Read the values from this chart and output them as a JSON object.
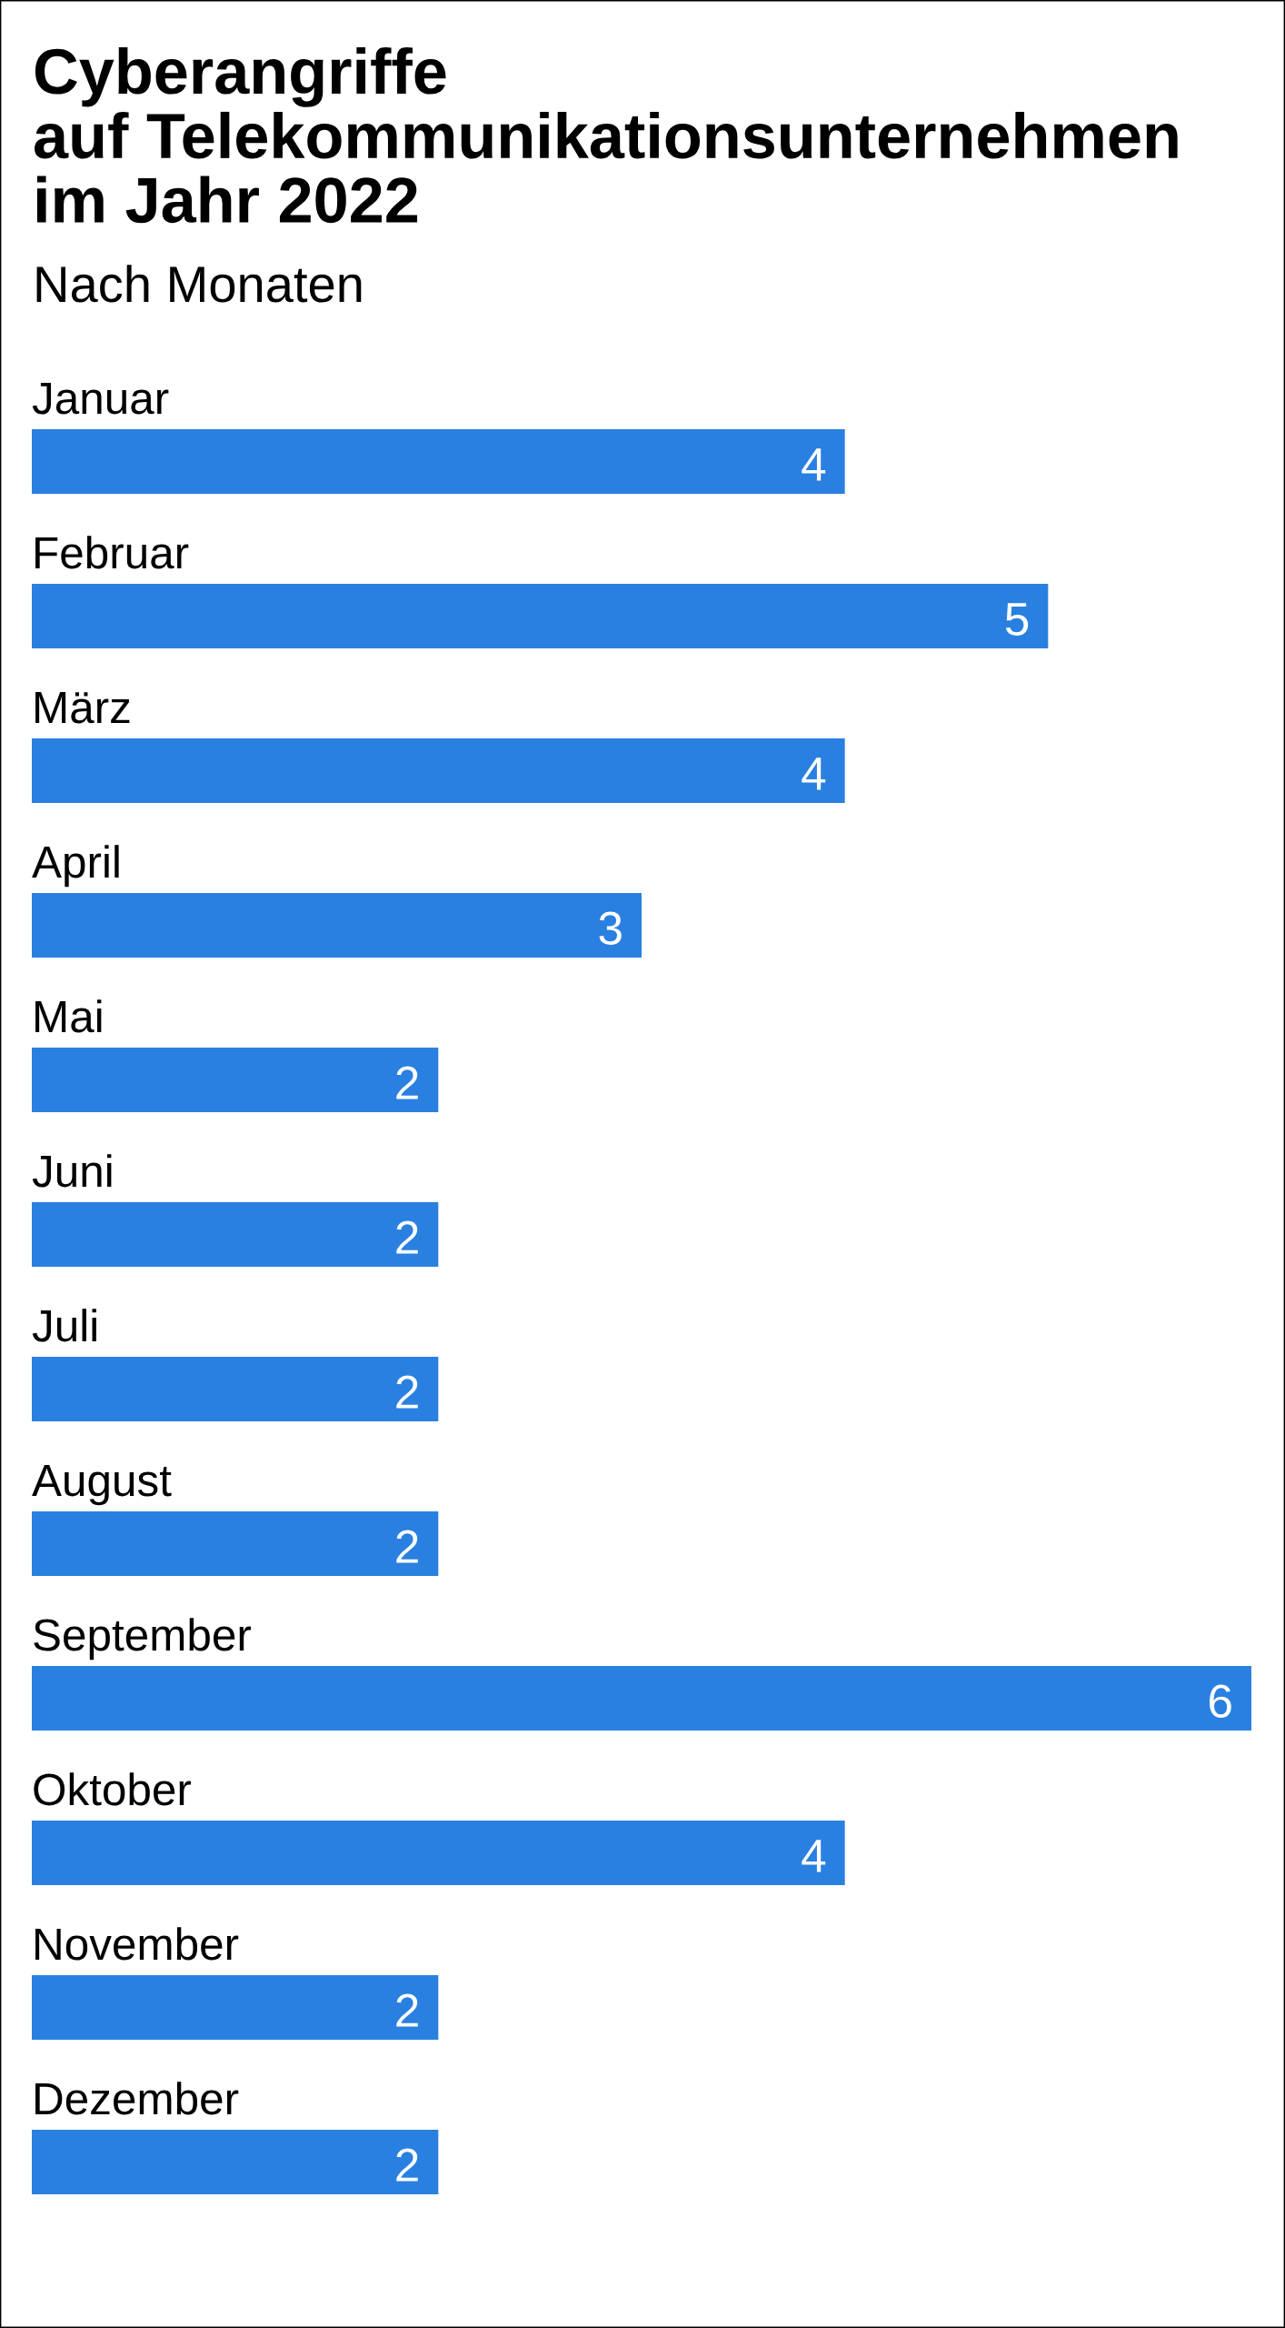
{
  "chart_data": {
    "type": "bar",
    "orientation": "horizontal",
    "title": "Cyberangriffe\nauf Telekommunikationsunternehmen\nim Jahr 2022",
    "subtitle": "Nach Monaten",
    "categories": [
      "Januar",
      "Februar",
      "März",
      "April",
      "Mai",
      "Juni",
      "Juli",
      "August",
      "September",
      "Oktober",
      "November",
      "Dezember"
    ],
    "values": [
      4,
      5,
      4,
      3,
      2,
      2,
      2,
      2,
      6,
      4,
      2,
      2
    ],
    "color": "#2a80e0",
    "data_labels": true,
    "tick_labels": "y"
  }
}
